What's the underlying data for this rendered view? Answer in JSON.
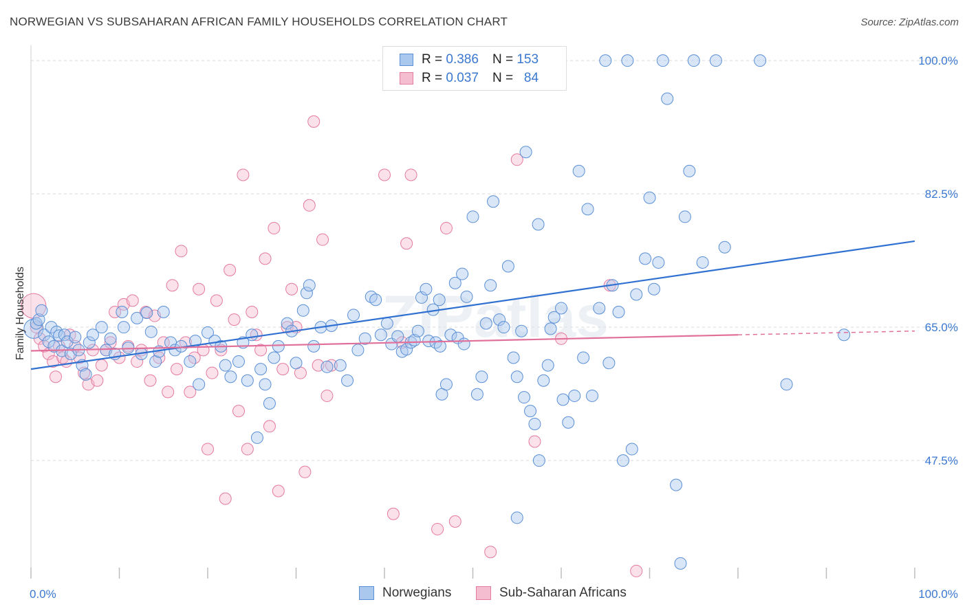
{
  "title": "NORWEGIAN VS SUBSAHARAN AFRICAN FAMILY HOUSEHOLDS CORRELATION CHART",
  "source": "Source: ZipAtlas.com",
  "watermark": "ZIPatlas",
  "legend": {
    "norwegians": {
      "r_label": "R =",
      "r_value": "0.386",
      "n_label": "N =",
      "n_value": "153",
      "name": "Norwegians"
    },
    "subsaharan": {
      "r_label": "R =",
      "r_value": "0.037",
      "n_label": "N =",
      "n_value": "84",
      "name": "Sub-Saharan Africans"
    }
  },
  "colors": {
    "blue_fill": "#aac8ee",
    "blue_stroke": "#5a8fd6",
    "blue_line": "#2f70d0",
    "pink_fill": "#f4bdd0",
    "pink_stroke": "#e47aa0",
    "pink_line": "#e0709a",
    "grid": "#d9d9d9",
    "axis_text": "#3a78d0"
  },
  "chart_data": {
    "type": "scatter",
    "title": "NORWEGIAN VS SUBSAHARAN AFRICAN FAMILY HOUSEHOLDS CORRELATION CHART",
    "xlabel": "",
    "ylabel": "Family Households",
    "x_range": [
      0,
      100
    ],
    "y_range": [
      32,
      102
    ],
    "x_tick_labels": [
      "0.0%",
      "100.0%"
    ],
    "y_ticks": [
      47.5,
      65.0,
      82.5,
      100.0
    ],
    "y_tick_labels": [
      "47.5%",
      "65.0%",
      "82.5%",
      "100.0%"
    ],
    "grid": "horizontal dashed",
    "legend_position": "top-center",
    "series": [
      {
        "name": "Norwegians",
        "r": 0.386,
        "n": 153,
        "trend": {
          "x": [
            0,
            100
          ],
          "y": [
            59.5,
            76.3
          ]
        },
        "points": [
          [
            0.3,
            64.8
          ],
          [
            0.6,
            65.5
          ],
          [
            0.9,
            66.0
          ],
          [
            1.2,
            67.2
          ],
          [
            1.5,
            64.0
          ],
          [
            2.0,
            63.1
          ],
          [
            2.3,
            65.0
          ],
          [
            2.6,
            62.5
          ],
          [
            2.9,
            64.4
          ],
          [
            3.2,
            63.9
          ],
          [
            3.5,
            61.9
          ],
          [
            3.8,
            64.0
          ],
          [
            4.1,
            63.1
          ],
          [
            4.5,
            61.5
          ],
          [
            5.0,
            63.7
          ],
          [
            5.4,
            62.0
          ],
          [
            5.8,
            60.0
          ],
          [
            6.2,
            58.8
          ],
          [
            6.6,
            63.0
          ],
          [
            7.0,
            64.0
          ],
          [
            8.0,
            65.0
          ],
          [
            8.5,
            62.0
          ],
          [
            9.0,
            63.5
          ],
          [
            9.5,
            61.5
          ],
          [
            10.3,
            67.0
          ],
          [
            10.5,
            65.0
          ],
          [
            11.0,
            62.3
          ],
          [
            12.0,
            66.2
          ],
          [
            12.5,
            61.5
          ],
          [
            13.1,
            66.9
          ],
          [
            13.6,
            64.4
          ],
          [
            14.1,
            60.5
          ],
          [
            14.5,
            61.8
          ],
          [
            15.0,
            67.0
          ],
          [
            15.8,
            63.0
          ],
          [
            16.3,
            62.0
          ],
          [
            17.0,
            62.5
          ],
          [
            18.0,
            60.5
          ],
          [
            18.6,
            63.2
          ],
          [
            19.0,
            57.5
          ],
          [
            20.0,
            64.3
          ],
          [
            20.8,
            63.2
          ],
          [
            21.5,
            62.5
          ],
          [
            22.0,
            60.0
          ],
          [
            22.6,
            58.5
          ],
          [
            23.5,
            60.5
          ],
          [
            24.0,
            63.0
          ],
          [
            24.5,
            58.0
          ],
          [
            25.0,
            64.0
          ],
          [
            25.6,
            50.5
          ],
          [
            26.0,
            59.5
          ],
          [
            26.5,
            57.5
          ],
          [
            27.0,
            55.0
          ],
          [
            27.5,
            61.0
          ],
          [
            28.0,
            62.5
          ],
          [
            29.0,
            65.5
          ],
          [
            29.5,
            64.5
          ],
          [
            30.0,
            60.3
          ],
          [
            30.8,
            67.2
          ],
          [
            31.2,
            69.5
          ],
          [
            31.5,
            70.5
          ],
          [
            32.0,
            62.5
          ],
          [
            32.8,
            65.0
          ],
          [
            33.5,
            59.8
          ],
          [
            34.0,
            65.2
          ],
          [
            35.0,
            60.0
          ],
          [
            35.8,
            58.0
          ],
          [
            36.5,
            66.6
          ],
          [
            37.0,
            62.0
          ],
          [
            37.8,
            63.5
          ],
          [
            38.5,
            69.0
          ],
          [
            39.0,
            68.6
          ],
          [
            39.6,
            64.0
          ],
          [
            40.3,
            65.5
          ],
          [
            40.8,
            62.8
          ],
          [
            41.5,
            63.8
          ],
          [
            42.0,
            61.8
          ],
          [
            42.5,
            62.1
          ],
          [
            43.0,
            63.0
          ],
          [
            43.4,
            63.3
          ],
          [
            43.8,
            64.5
          ],
          [
            44.2,
            68.9
          ],
          [
            44.7,
            70.0
          ],
          [
            45.0,
            63.2
          ],
          [
            45.5,
            67.3
          ],
          [
            45.8,
            63.0
          ],
          [
            46.2,
            68.6
          ],
          [
            46.5,
            56.2
          ],
          [
            47.5,
            64.0
          ],
          [
            48.0,
            70.8
          ],
          [
            48.3,
            63.6
          ],
          [
            48.8,
            72.0
          ],
          [
            49.0,
            62.8
          ],
          [
            49.3,
            69.0
          ],
          [
            50.0,
            79.5
          ],
          [
            50.5,
            56.2
          ],
          [
            51.0,
            58.5
          ],
          [
            51.5,
            65.5
          ],
          [
            52.3,
            81.5
          ],
          [
            53.0,
            66.0
          ],
          [
            53.5,
            65.0
          ],
          [
            54.0,
            73.0
          ],
          [
            54.6,
            61.0
          ],
          [
            55.0,
            58.5
          ],
          [
            55.5,
            64.5
          ],
          [
            56.0,
            88.0
          ],
          [
            56.5,
            54.0
          ],
          [
            57.0,
            52.3
          ],
          [
            57.4,
            78.5
          ],
          [
            58.0,
            58.0
          ],
          [
            58.8,
            64.8
          ],
          [
            59.2,
            66.3
          ],
          [
            60.0,
            67.5
          ],
          [
            60.8,
            52.5
          ],
          [
            61.5,
            56.0
          ],
          [
            62.0,
            85.5
          ],
          [
            62.5,
            61.0
          ],
          [
            63.0,
            80.5
          ],
          [
            63.5,
            56.0
          ],
          [
            64.3,
            67.5
          ],
          [
            65.0,
            100.0
          ],
          [
            65.4,
            60.3
          ],
          [
            65.8,
            70.5
          ],
          [
            66.5,
            67.0
          ],
          [
            67.0,
            47.5
          ],
          [
            67.5,
            100.0
          ],
          [
            68.0,
            49.0
          ],
          [
            68.5,
            69.3
          ],
          [
            69.5,
            74.0
          ],
          [
            70.0,
            82.0
          ],
          [
            70.5,
            70.0
          ],
          [
            71.0,
            73.5
          ],
          [
            71.5,
            100.0
          ],
          [
            72.0,
            95.0
          ],
          [
            73.0,
            44.3
          ],
          [
            73.5,
            34.0
          ],
          [
            74.0,
            79.5
          ],
          [
            74.5,
            85.5
          ],
          [
            75.0,
            100.0
          ],
          [
            76.0,
            73.5
          ],
          [
            77.5,
            100.0
          ],
          [
            78.5,
            75.5
          ],
          [
            82.5,
            100.0
          ],
          [
            85.5,
            57.5
          ],
          [
            92.0,
            64.0
          ],
          [
            55.0,
            40.0
          ],
          [
            57.5,
            47.5
          ],
          [
            47.0,
            57.5
          ],
          [
            46.3,
            62.5
          ],
          [
            55.8,
            55.8
          ],
          [
            58.5,
            60.0
          ],
          [
            60.2,
            55.5
          ],
          [
            52.0,
            70.5
          ]
        ]
      },
      {
        "name": "Sub-Saharan Africans",
        "r": 0.037,
        "n": 84,
        "trend": {
          "x": [
            0,
            80
          ],
          "y": [
            61.9,
            64.0
          ]
        },
        "trend_dashed": {
          "x": [
            80,
            100
          ],
          "y": [
            64.0,
            64.5
          ]
        },
        "points": [
          [
            0.3,
            67.8
          ],
          [
            0.6,
            65.0
          ],
          [
            1.0,
            63.5
          ],
          [
            1.5,
            62.5
          ],
          [
            2.0,
            61.5
          ],
          [
            2.5,
            60.5
          ],
          [
            2.8,
            58.5
          ],
          [
            3.2,
            62.5
          ],
          [
            3.6,
            61.0
          ],
          [
            4.0,
            60.5
          ],
          [
            4.4,
            64.0
          ],
          [
            5.0,
            62.5
          ],
          [
            5.5,
            61.0
          ],
          [
            6.0,
            59.0
          ],
          [
            6.5,
            57.5
          ],
          [
            7.0,
            62.0
          ],
          [
            7.5,
            58.0
          ],
          [
            8.0,
            60.0
          ],
          [
            8.5,
            62.0
          ],
          [
            9.0,
            63.0
          ],
          [
            9.5,
            67.0
          ],
          [
            10.0,
            61.0
          ],
          [
            10.5,
            68.0
          ],
          [
            11.0,
            62.5
          ],
          [
            11.5,
            68.5
          ],
          [
            12.0,
            60.5
          ],
          [
            12.5,
            62.0
          ],
          [
            13.0,
            67.0
          ],
          [
            13.5,
            58.0
          ],
          [
            14.0,
            66.5
          ],
          [
            14.5,
            61.0
          ],
          [
            15.0,
            63.0
          ],
          [
            15.5,
            56.5
          ],
          [
            16.0,
            70.5
          ],
          [
            16.5,
            59.5
          ],
          [
            17.0,
            75.0
          ],
          [
            17.5,
            63.0
          ],
          [
            18.0,
            56.5
          ],
          [
            18.5,
            61.0
          ],
          [
            19.0,
            70.0
          ],
          [
            19.5,
            62.0
          ],
          [
            20.0,
            49.0
          ],
          [
            20.5,
            59.0
          ],
          [
            21.0,
            68.5
          ],
          [
            21.5,
            62.0
          ],
          [
            22.0,
            42.5
          ],
          [
            22.5,
            72.5
          ],
          [
            23.0,
            66.0
          ],
          [
            23.5,
            54.0
          ],
          [
            24.0,
            85.0
          ],
          [
            24.5,
            49.0
          ],
          [
            25.0,
            67.0
          ],
          [
            25.5,
            64.0
          ],
          [
            26.0,
            62.0
          ],
          [
            26.5,
            74.0
          ],
          [
            27.0,
            52.0
          ],
          [
            27.5,
            78.0
          ],
          [
            28.0,
            43.5
          ],
          [
            28.5,
            59.5
          ],
          [
            29.0,
            65.0
          ],
          [
            29.5,
            70.0
          ],
          [
            30.0,
            65.0
          ],
          [
            30.5,
            59.0
          ],
          [
            31.0,
            46.0
          ],
          [
            31.5,
            81.0
          ],
          [
            32.0,
            92.0
          ],
          [
            32.5,
            60.0
          ],
          [
            33.0,
            76.5
          ],
          [
            33.5,
            56.0
          ],
          [
            34.0,
            60.0
          ],
          [
            40.0,
            85.0
          ],
          [
            41.0,
            40.5
          ],
          [
            42.0,
            63.0
          ],
          [
            42.5,
            76.0
          ],
          [
            43.0,
            85.0
          ],
          [
            46.0,
            38.5
          ],
          [
            47.0,
            78.0
          ],
          [
            48.0,
            39.5
          ],
          [
            52.0,
            35.5
          ],
          [
            55.0,
            87.0
          ],
          [
            57.0,
            50.0
          ],
          [
            60.0,
            63.5
          ],
          [
            65.5,
            70.5
          ],
          [
            68.5,
            33.0
          ]
        ]
      }
    ]
  }
}
